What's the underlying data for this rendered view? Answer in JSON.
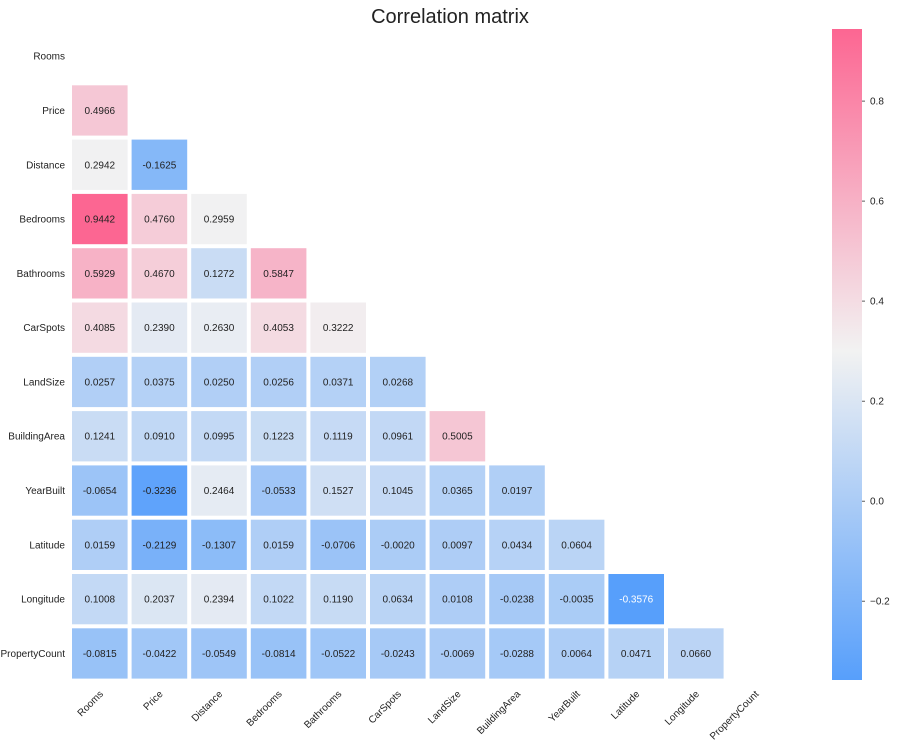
{
  "chart_data": {
    "type": "heatmap",
    "title": "Correlation matrix",
    "variables": [
      "Rooms",
      "Price",
      "Distance",
      "Bedrooms",
      "Bathrooms",
      "CarSpots",
      "LandSize",
      "BuildingArea",
      "YearBuilt",
      "Latitude",
      "Longitude",
      "PropertyCount"
    ],
    "mask": "upper-triangle-and-diagonal",
    "rows": [
      [],
      [
        0.4966
      ],
      [
        0.2942,
        -0.1625
      ],
      [
        0.9442,
        0.476,
        0.2959
      ],
      [
        0.5929,
        0.467,
        0.1272,
        0.5847
      ],
      [
        0.4085,
        0.239,
        0.263,
        0.4053,
        0.3222
      ],
      [
        0.0257,
        0.0375,
        0.025,
        0.0256,
        0.0371,
        0.0268
      ],
      [
        0.1241,
        0.091,
        0.0995,
        0.1223,
        0.1119,
        0.0961,
        0.5005
      ],
      [
        -0.0654,
        -0.3236,
        0.2464,
        -0.0533,
        0.1527,
        0.1045,
        0.0365,
        0.0197
      ],
      [
        0.0159,
        -0.2129,
        -0.1307,
        0.0159,
        -0.0706,
        -0.002,
        0.0097,
        0.0434,
        0.0604
      ],
      [
        0.1008,
        0.2037,
        0.2394,
        0.1022,
        0.119,
        0.0634,
        0.0108,
        -0.0238,
        -0.0035,
        -0.3576
      ],
      [
        -0.0815,
        -0.0422,
        -0.0549,
        -0.0814,
        -0.0522,
        -0.0243,
        -0.0069,
        -0.0288,
        0.0064,
        0.0471,
        0.066
      ]
    ],
    "cell_labels": [
      [],
      [
        "0.4966"
      ],
      [
        "0.2942",
        "-0.1625"
      ],
      [
        "0.9442",
        "0.4760",
        "0.2959"
      ],
      [
        "0.5929",
        "0.4670",
        "0.1272",
        "0.5847"
      ],
      [
        "0.4085",
        "0.2390",
        "0.2630",
        "0.4053",
        "0.3222"
      ],
      [
        "0.0257",
        "0.0375",
        "0.0250",
        "0.0256",
        "0.0371",
        "0.0268"
      ],
      [
        "0.1241",
        "0.0910",
        "0.0995",
        "0.1223",
        "0.1119",
        "0.0961",
        "0.5005"
      ],
      [
        "-0.0654",
        "-0.3236",
        "0.2464",
        "-0.0533",
        "0.1527",
        "0.1045",
        "0.0365",
        "0.0197"
      ],
      [
        "0.0159",
        "-0.2129",
        "-0.1307",
        "0.0159",
        "-0.0706",
        "-0.0020",
        "0.0097",
        "0.0434",
        "0.0604"
      ],
      [
        "0.1008",
        "0.2037",
        "0.2394",
        "0.1022",
        "0.1190",
        "0.0634",
        "0.0108",
        "-0.0238",
        "-0.0035",
        "-0.3576"
      ],
      [
        "-0.0815",
        "-0.0422",
        "-0.0549",
        "-0.0814",
        "-0.0522",
        "-0.0243",
        "-0.0069",
        "-0.0288",
        "0.0064",
        "0.0471",
        "0.0660"
      ]
    ],
    "colorscale": {
      "min": -0.3576,
      "center": 0.3,
      "max": 0.9442,
      "low_color": "#579ffb",
      "mid_color": "#f2f2f2",
      "high_color": "#fc6692"
    },
    "colorbar_ticks": [
      0.8,
      0.6,
      0.4,
      0.2,
      0.0,
      -0.2
    ],
    "colorbar_tick_labels": [
      "0.8",
      "0.6",
      "0.4",
      "0.2",
      "0.0",
      "−0.2"
    ],
    "x_tick_rotation_deg": -45,
    "grid": false
  }
}
